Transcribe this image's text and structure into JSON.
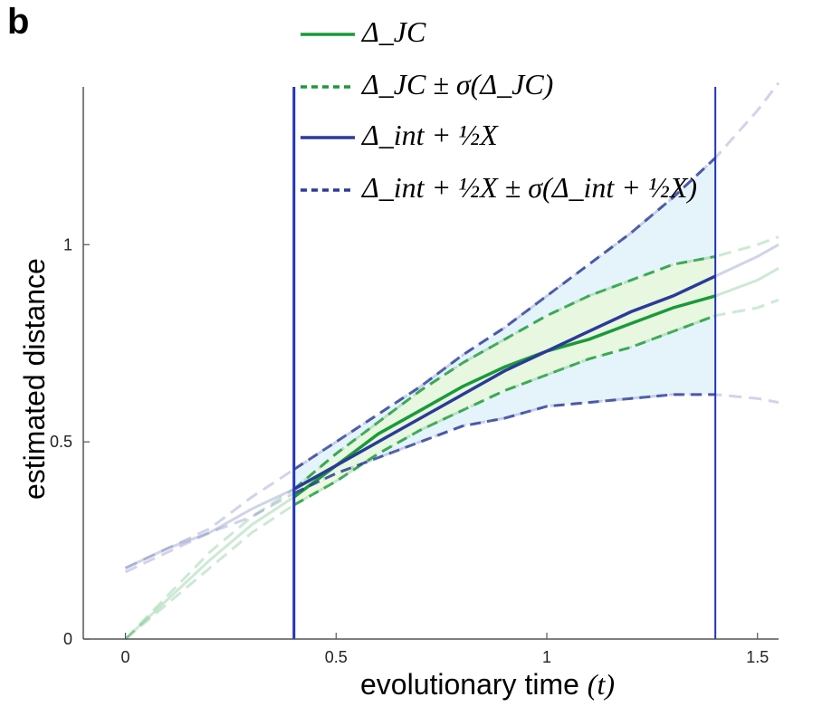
{
  "panel_label": "b",
  "chart_data": {
    "type": "line",
    "xlabel": "evolutionary time",
    "xlabel_var": "(t)",
    "ylabel": "estimated distance",
    "xlim": [
      -0.1,
      1.55
    ],
    "ylim": [
      0,
      1.4
    ],
    "x_ticks": [
      0,
      0.5,
      1,
      1.5
    ],
    "x_tick_labels": [
      "0",
      "0.5",
      "1",
      "1.5"
    ],
    "y_ticks": [
      0,
      0.5,
      1
    ],
    "y_tick_labels": [
      "0",
      "0.5",
      "1"
    ],
    "grid": false,
    "legend_position": "top-center",
    "legend": [
      {
        "label": "Δ_JC",
        "style": "solid",
        "color": "#1a9a3a"
      },
      {
        "label": "Δ_JC ± σ(Δ_JC)",
        "style": "dashed",
        "color": "#1a9a3a"
      },
      {
        "label": "Δ_int + ½X",
        "style": "solid",
        "color": "#2b3a99"
      },
      {
        "label": "Δ_int + ½X ± σ(Δ_int + ½X)",
        "style": "dashed",
        "color": "#2b3a99"
      }
    ],
    "vertical_lines": [
      0.4,
      1.4
    ],
    "highlight_range": [
      0.4,
      1.4
    ],
    "x": [
      0,
      0.1,
      0.2,
      0.3,
      0.4,
      0.5,
      0.6,
      0.7,
      0.8,
      0.9,
      1.0,
      1.1,
      1.2,
      1.3,
      1.4,
      1.5,
      1.55
    ],
    "series": [
      {
        "name": "Δ_JC",
        "style": "solid",
        "color": "#1a9a3a",
        "values": [
          0.0,
          0.1,
          0.2,
          0.29,
          0.36,
          0.44,
          0.52,
          0.58,
          0.64,
          0.69,
          0.73,
          0.76,
          0.8,
          0.84,
          0.87,
          0.91,
          0.94
        ]
      },
      {
        "name": "Δ_JC + σ(Δ_JC)",
        "style": "dashed",
        "color": "#1a9a3a",
        "values": [
          0.0,
          0.11,
          0.22,
          0.31,
          0.38,
          0.47,
          0.55,
          0.63,
          0.7,
          0.76,
          0.82,
          0.87,
          0.91,
          0.95,
          0.97,
          1.0,
          1.02
        ]
      },
      {
        "name": "Δ_JC − σ(Δ_JC)",
        "style": "dashed",
        "color": "#1a9a3a",
        "values": [
          0.0,
          0.09,
          0.18,
          0.27,
          0.34,
          0.4,
          0.47,
          0.53,
          0.58,
          0.63,
          0.67,
          0.71,
          0.74,
          0.78,
          0.82,
          0.84,
          0.86
        ]
      },
      {
        "name": "Δ_int + ½X",
        "style": "solid",
        "color": "#2b3a99",
        "values": [
          0.18,
          0.23,
          0.27,
          0.33,
          0.38,
          0.44,
          0.5,
          0.56,
          0.62,
          0.68,
          0.73,
          0.78,
          0.83,
          0.87,
          0.92,
          0.97,
          1.0
        ]
      },
      {
        "name": "Δ_int + ½X + σ",
        "style": "dashed",
        "color": "#2b3a99",
        "values": [
          0.18,
          0.23,
          0.28,
          0.36,
          0.43,
          0.5,
          0.57,
          0.64,
          0.72,
          0.79,
          0.87,
          0.95,
          1.03,
          1.12,
          1.22,
          1.34,
          1.41
        ]
      },
      {
        "name": "Δ_int + ½X − σ",
        "style": "dashed",
        "color": "#2b3a99",
        "values": [
          0.17,
          0.22,
          0.27,
          0.31,
          0.37,
          0.42,
          0.46,
          0.5,
          0.54,
          0.56,
          0.59,
          0.6,
          0.61,
          0.62,
          0.62,
          0.61,
          0.6
        ]
      }
    ]
  }
}
